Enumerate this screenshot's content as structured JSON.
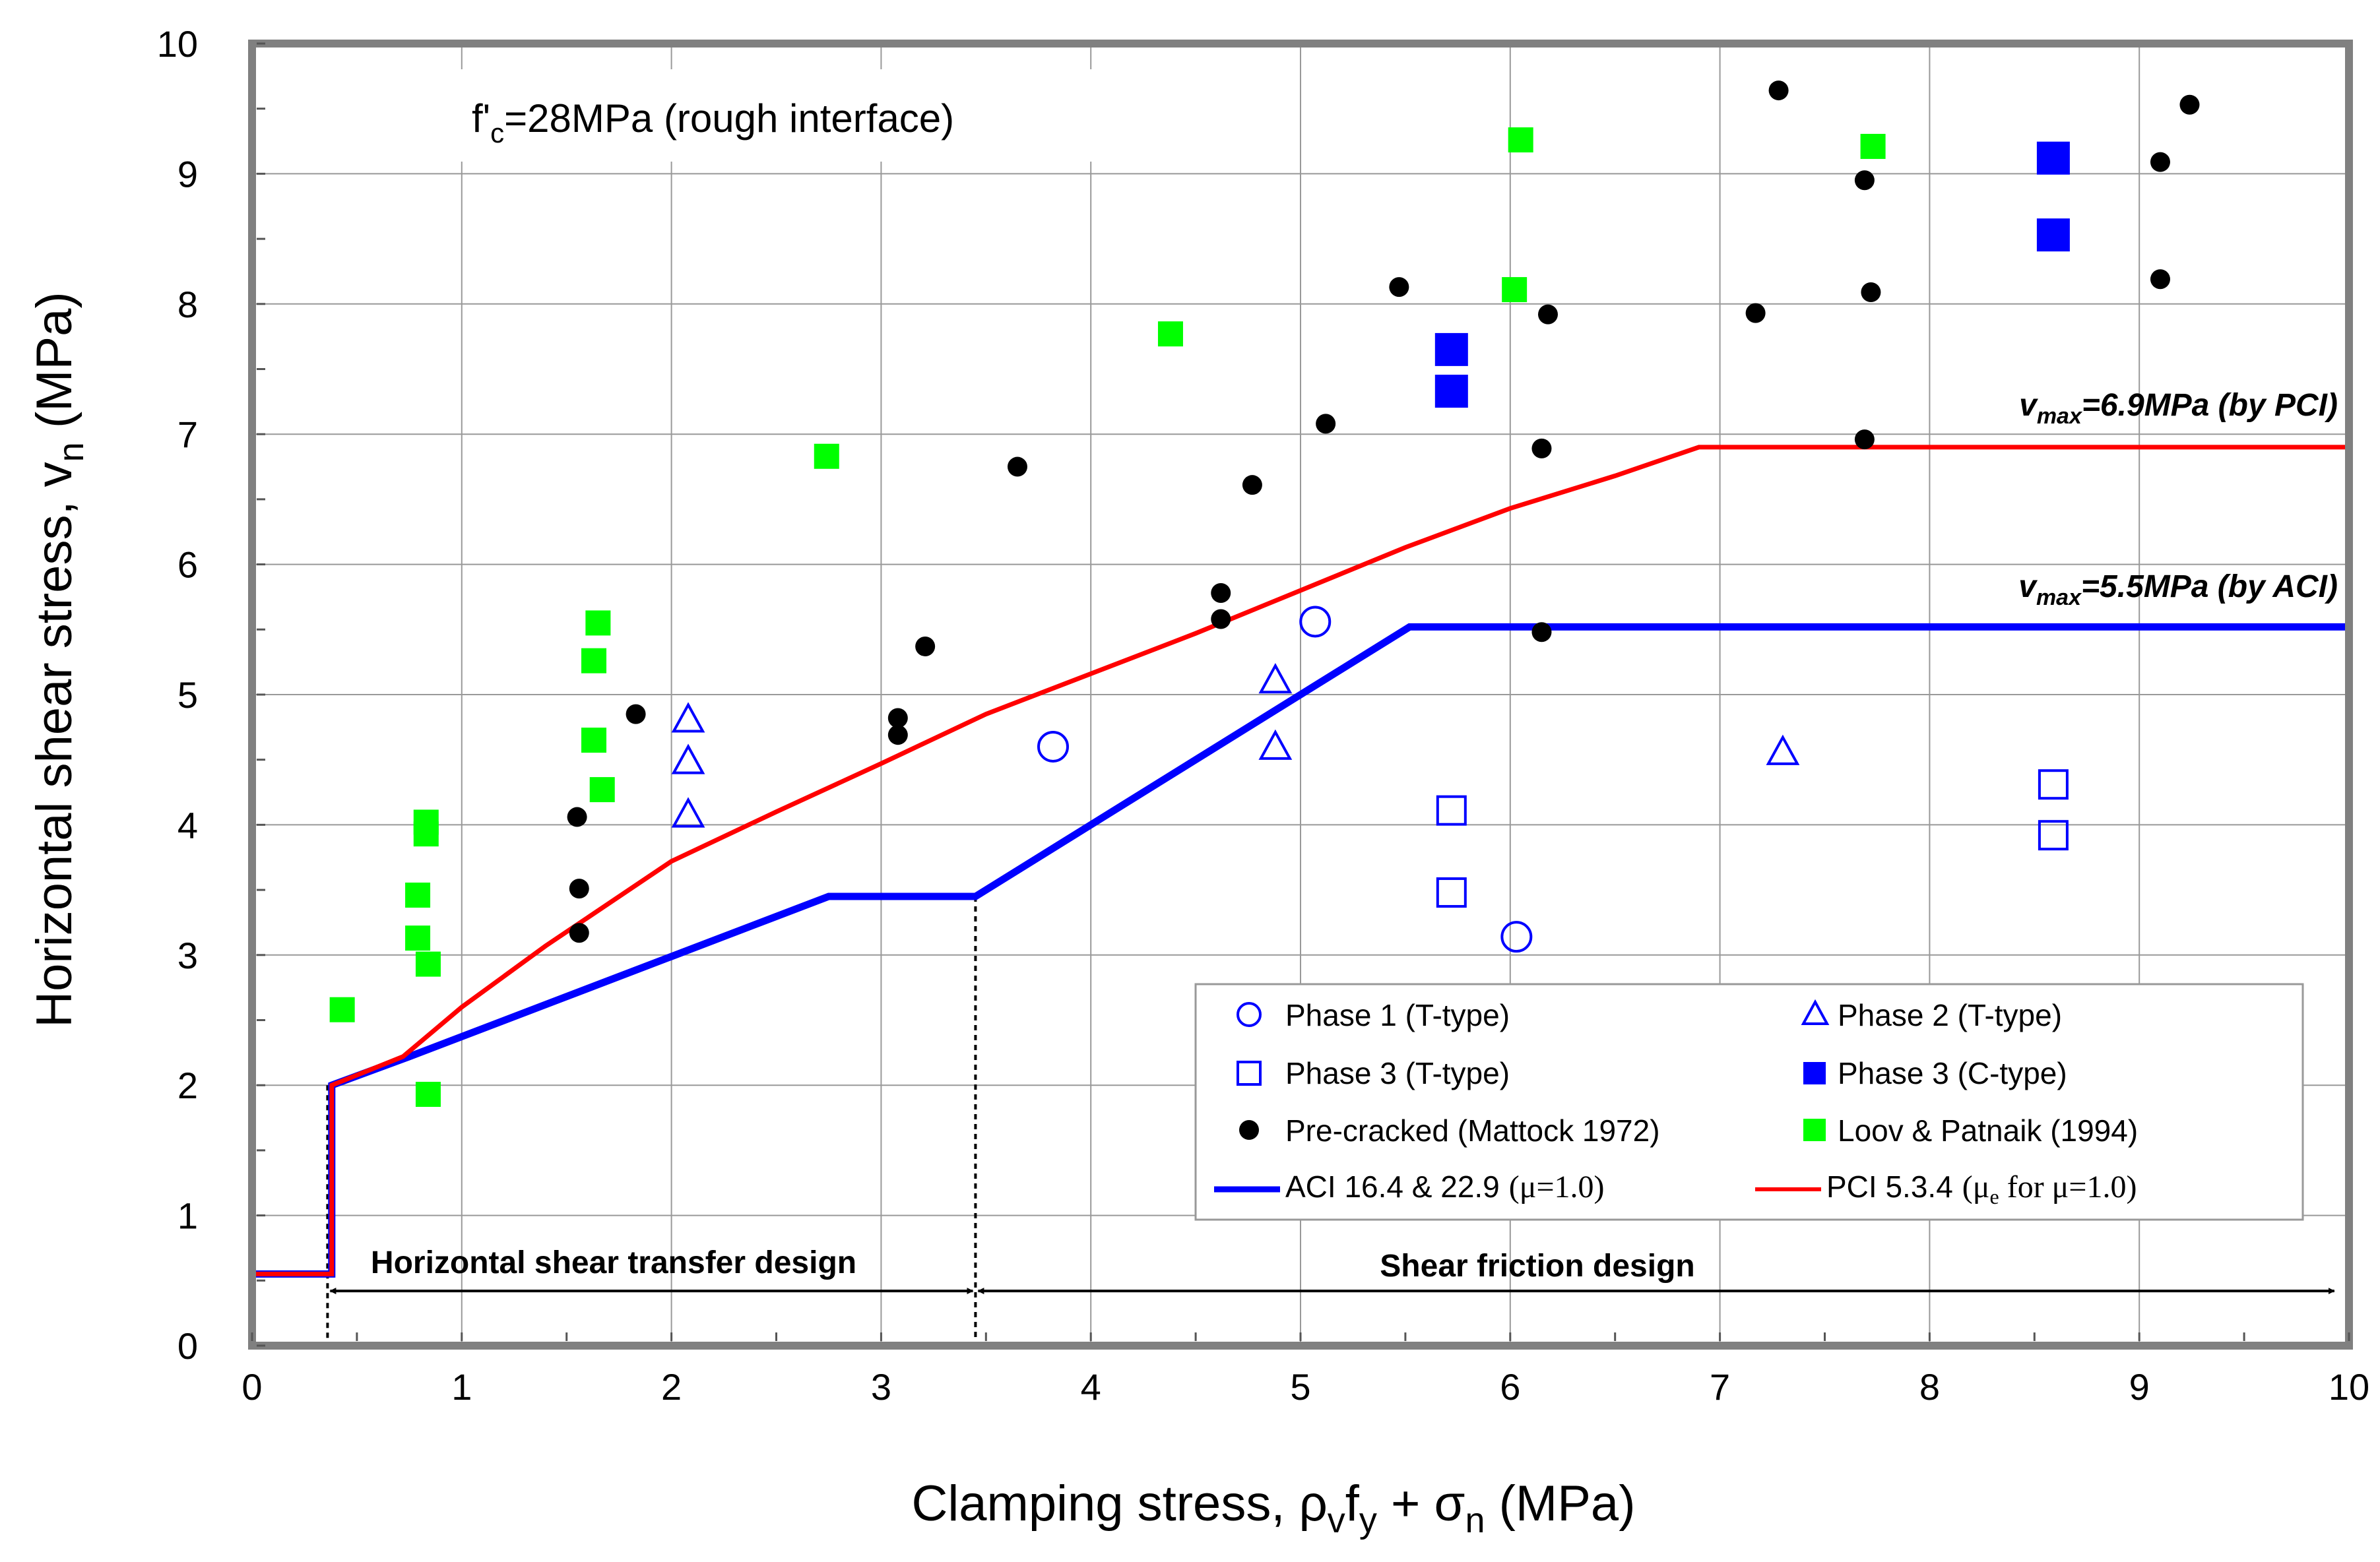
{
  "chart_data": {
    "type": "scatter",
    "title": "",
    "xlabel": {
      "main": "Clamping stress, ",
      "rho": "ρ",
      "rho_sub": "v",
      "f": "f",
      "f_sub": "y",
      "plus": " + ",
      "sigma": "σ",
      "sigma_sub": "n",
      "unit": " (MPa)"
    },
    "ylabel": {
      "main": "Horizontal shear stress, v",
      "sub": "n",
      "unit": " (MPa)"
    },
    "xlim": [
      0,
      10
    ],
    "ylim": [
      0,
      10
    ],
    "xticks": [
      "0",
      "1",
      "2",
      "3",
      "4",
      "5",
      "6",
      "7",
      "8",
      "9",
      "10"
    ],
    "yticks": [
      "0",
      "1",
      "2",
      "3",
      "4",
      "5",
      "6",
      "7",
      "8",
      "9",
      "10"
    ],
    "grid": true,
    "annotation": {
      "pre": "f'",
      "sub": "c",
      "post": "=28MPa (rough interface)"
    },
    "vmax_pci": {
      "v": "v",
      "sub": "max",
      "text": "=6.9MPa (by PCI)"
    },
    "vmax_aci": {
      "v": "v",
      "sub": "max",
      "text": "=5.5MPa (by ACI)"
    },
    "region_left": "Horizontal shear transfer design",
    "region_right": "Shear friction design",
    "region_boundary_x": 3.45,
    "left_boundary_x": 0.36,
    "colors": {
      "blue": "#0000ff",
      "red": "#ff0000",
      "green": "#00ff00",
      "black": "#000000",
      "grid": "#999999",
      "frame": "#808080"
    },
    "series": [
      {
        "name": "Phase 1 (T-type)",
        "marker": "circle-open",
        "color": "#0000ff",
        "points": [
          [
            3.82,
            4.6
          ],
          [
            5.07,
            5.56
          ],
          [
            6.03,
            3.14
          ]
        ]
      },
      {
        "name": "Phase 2 (T-type)",
        "marker": "triangle-open",
        "color": "#0000ff",
        "points": [
          [
            2.08,
            4.8
          ],
          [
            2.08,
            4.48
          ],
          [
            2.08,
            4.07
          ],
          [
            4.88,
            5.1
          ],
          [
            4.88,
            4.59
          ],
          [
            7.3,
            4.55
          ]
        ]
      },
      {
        "name": "Phase 3 (T-type)",
        "marker": "square-open",
        "color": "#0000ff",
        "points": [
          [
            5.72,
            4.11
          ],
          [
            5.72,
            3.48
          ],
          [
            8.59,
            4.31
          ],
          [
            8.59,
            3.92
          ]
        ]
      },
      {
        "name": "Phase 3 (C-type)",
        "marker": "square-filled",
        "color": "#0000ff",
        "points": [
          [
            5.72,
            7.65
          ],
          [
            5.72,
            7.33
          ],
          [
            8.59,
            9.12
          ],
          [
            8.59,
            8.53
          ]
        ]
      },
      {
        "name": "Pre-cracked (Mattock 1972)",
        "marker": "circle-filled",
        "color": "#000000",
        "points": [
          [
            1.55,
            4.06
          ],
          [
            1.56,
            3.51
          ],
          [
            1.56,
            3.17
          ],
          [
            1.83,
            4.85
          ],
          [
            3.08,
            4.82
          ],
          [
            3.08,
            4.69
          ],
          [
            3.21,
            5.37
          ],
          [
            3.65,
            6.75
          ],
          [
            4.62,
            5.78
          ],
          [
            4.62,
            5.58
          ],
          [
            4.77,
            6.61
          ],
          [
            5.12,
            7.08
          ],
          [
            5.47,
            8.13
          ],
          [
            6.15,
            6.89
          ],
          [
            6.15,
            5.48
          ],
          [
            6.18,
            7.92
          ],
          [
            7.17,
            7.93
          ],
          [
            7.28,
            9.64
          ],
          [
            7.69,
            8.95
          ],
          [
            7.69,
            6.96
          ],
          [
            7.72,
            8.09
          ],
          [
            9.1,
            9.09
          ],
          [
            9.1,
            8.19
          ],
          [
            9.24,
            9.53
          ]
        ]
      },
      {
        "name": "Loov & Patnaik (1994)",
        "marker": "square-filled",
        "color": "#00ff00",
        "points": [
          [
            0.43,
            2.58
          ],
          [
            0.79,
            3.46
          ],
          [
            0.79,
            3.13
          ],
          [
            0.83,
            4.02
          ],
          [
            0.83,
            3.93
          ],
          [
            0.84,
            2.93
          ],
          [
            0.84,
            1.93
          ],
          [
            1.63,
            5.26
          ],
          [
            1.63,
            4.65
          ],
          [
            1.65,
            5.55
          ],
          [
            1.67,
            4.27
          ],
          [
            2.74,
            6.83
          ],
          [
            4.38,
            7.77
          ],
          [
            6.02,
            8.11
          ],
          [
            6.05,
            9.26
          ],
          [
            7.73,
            9.21
          ]
        ]
      },
      {
        "name": "ACI 16.4 & 22.9",
        "mu": "(μ=1.0)",
        "marker": "line",
        "color": "#0000ff",
        "points": [
          [
            0,
            0.55
          ],
          [
            0.38,
            0.55
          ],
          [
            0.38,
            2.0
          ],
          [
            0.75,
            2.22
          ],
          [
            2.75,
            3.45
          ],
          [
            3.45,
            3.45
          ],
          [
            5.52,
            5.52
          ],
          [
            10,
            5.52
          ]
        ]
      },
      {
        "name": "PCI 5.3.4",
        "mu": "(μ",
        "mu_sub": "e",
        "mu_post": " for μ=1.0)",
        "marker": "line",
        "color": "#ff0000",
        "points": [
          [
            0,
            0.55
          ],
          [
            0.38,
            0.55
          ],
          [
            0.38,
            2.0
          ],
          [
            0.72,
            2.22
          ],
          [
            1.0,
            2.6
          ],
          [
            1.4,
            3.07
          ],
          [
            2.0,
            3.72
          ],
          [
            2.5,
            4.1
          ],
          [
            3.0,
            4.47
          ],
          [
            3.5,
            4.85
          ],
          [
            4.0,
            5.16
          ],
          [
            4.5,
            5.47
          ],
          [
            5.0,
            5.8
          ],
          [
            5.5,
            6.13
          ],
          [
            6.0,
            6.43
          ],
          [
            6.5,
            6.68
          ],
          [
            6.9,
            6.9
          ],
          [
            10,
            6.9
          ]
        ]
      }
    ]
  }
}
